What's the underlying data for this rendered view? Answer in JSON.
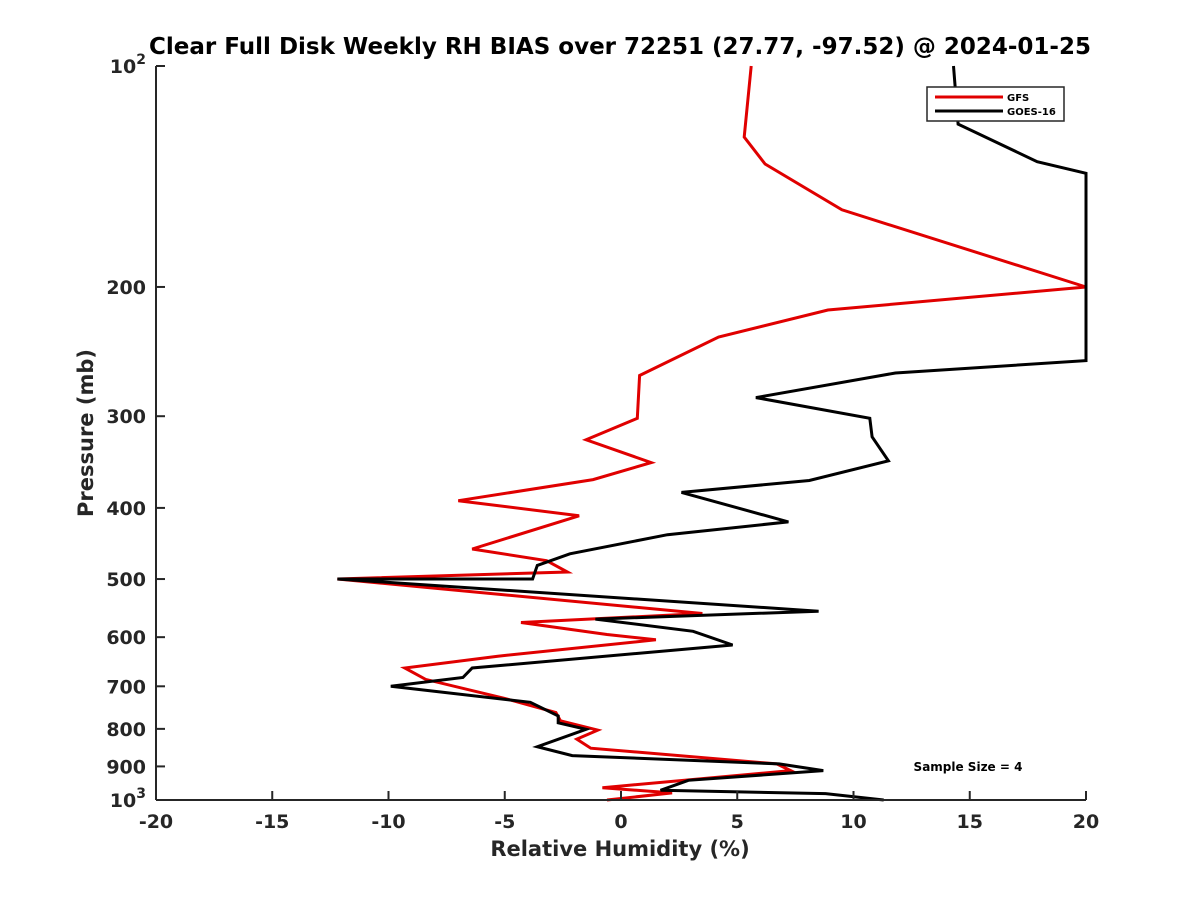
{
  "chart_data": {
    "type": "line",
    "title": "Clear Full Disk Weekly RH BIAS over 72251 (27.77, -97.52) @ 2024-01-25",
    "xlabel": "Relative Humidity (%)",
    "ylabel": "Pressure (mb)",
    "xlim": [
      -20,
      20
    ],
    "ylim": [
      100,
      1000
    ],
    "y_scale": "log",
    "y_reversed": true,
    "x_ticks": [
      "-20",
      "-15",
      "-10",
      "-5",
      "0",
      "5",
      "10",
      "15",
      "20"
    ],
    "y_ticks": [
      {
        "value": 100,
        "base": "10",
        "exp": "2"
      },
      {
        "value": 200,
        "base": "200",
        "exp": ""
      },
      {
        "value": 300,
        "base": "300",
        "exp": ""
      },
      {
        "value": 400,
        "base": "400",
        "exp": ""
      },
      {
        "value": 500,
        "base": "500",
        "exp": ""
      },
      {
        "value": 600,
        "base": "600",
        "exp": ""
      },
      {
        "value": 700,
        "base": "700",
        "exp": ""
      },
      {
        "value": 800,
        "base": "800",
        "exp": ""
      },
      {
        "value": 900,
        "base": "900",
        "exp": ""
      },
      {
        "value": 1000,
        "base": "10",
        "exp": "3"
      }
    ],
    "grid": false,
    "legend_position": "top-right",
    "annotation": "Sample Size = 4",
    "series": [
      {
        "name": "GFS",
        "color": "#e00000",
        "points": [
          [
            5.6,
            100
          ],
          [
            5.3,
            125
          ],
          [
            6.2,
            136
          ],
          [
            9.5,
            157
          ],
          [
            20,
            200
          ],
          [
            8.9,
            215
          ],
          [
            4.2,
            234
          ],
          [
            0.8,
            264
          ],
          [
            0.7,
            302
          ],
          [
            -1.5,
            323
          ],
          [
            1.3,
            347
          ],
          [
            -1.2,
            366
          ],
          [
            -7.0,
            391
          ],
          [
            -1.8,
            410
          ],
          [
            -6.4,
            455
          ],
          [
            -3.2,
            472
          ],
          [
            -2.3,
            489
          ],
          [
            -12.2,
            500
          ],
          [
            3.5,
            557
          ],
          [
            -4.3,
            573
          ],
          [
            -0.6,
            595
          ],
          [
            1.5,
            605
          ],
          [
            -5.3,
            637
          ],
          [
            -9.3,
            661
          ],
          [
            -8.4,
            685
          ],
          [
            -5.0,
            727
          ],
          [
            -2.8,
            760
          ],
          [
            -2.6,
            780
          ],
          [
            -1.0,
            803
          ],
          [
            -1.9,
            826
          ],
          [
            -1.3,
            850
          ],
          [
            6.7,
            893
          ],
          [
            7.3,
            912
          ],
          [
            -0.8,
            962
          ],
          [
            2.2,
            978
          ],
          [
            -0.6,
            1000
          ]
        ]
      },
      {
        "name": "GOES-16",
        "color": "#000000",
        "points": [
          [
            14.3,
            100
          ],
          [
            14.5,
            120
          ],
          [
            17.9,
            135
          ],
          [
            20,
            140
          ],
          [
            20,
            252
          ],
          [
            11.8,
            262
          ],
          [
            5.8,
            283
          ],
          [
            10.7,
            302
          ],
          [
            10.8,
            320
          ],
          [
            11.5,
            345
          ],
          [
            8.1,
            367
          ],
          [
            2.6,
            381
          ],
          [
            7.2,
            418
          ],
          [
            2.0,
            435
          ],
          [
            -2.2,
            462
          ],
          [
            -3.6,
            479
          ],
          [
            -3.8,
            500
          ],
          [
            -12.2,
            500
          ],
          [
            8.5,
            553
          ],
          [
            -1.1,
            567
          ],
          [
            3.1,
            589
          ],
          [
            4.8,
            615
          ],
          [
            -6.4,
            661
          ],
          [
            -6.8,
            681
          ],
          [
            -9.9,
            700
          ],
          [
            -3.9,
            736
          ],
          [
            -2.7,
            768
          ],
          [
            -2.7,
            785
          ],
          [
            -1.5,
            801
          ],
          [
            -3.6,
            846
          ],
          [
            -2.1,
            870
          ],
          [
            6.8,
            893
          ],
          [
            8.7,
            912
          ],
          [
            2.9,
            940
          ],
          [
            1.7,
            970
          ],
          [
            8.8,
            980
          ],
          [
            11.3,
            1000
          ]
        ]
      }
    ]
  }
}
